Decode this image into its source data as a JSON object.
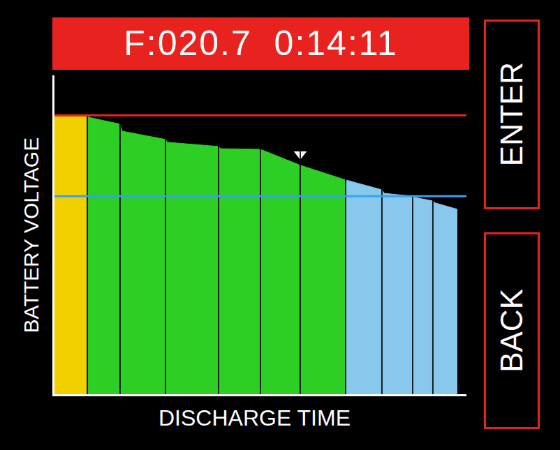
{
  "chart_data": {
    "type": "area",
    "title": "F:020.7  0:14:11",
    "xlabel": "DISCHARGE TIME",
    "ylabel": "BATTERY VOLTAGE",
    "xlim": [
      0,
      100
    ],
    "ylim": [
      0,
      100
    ],
    "xticks": [],
    "yticks": [],
    "tick_labels": false,
    "grid": false,
    "series": [
      {
        "color": "#f2d000",
        "x": [
          0,
          7.97
        ],
        "values": [
          87.1,
          87.1
        ]
      },
      {
        "color": "#2dcf24",
        "x": [
          7.97,
          8.81,
          15.93,
          16.44,
          26.95,
          27.46,
          39.83,
          40.34,
          50.0,
          59.66,
          70.68
        ],
        "values": [
          87.1,
          86.7,
          84.7,
          82.5,
          79.9,
          79.0,
          77.7,
          77.0,
          76.8,
          71.8,
          67.2
        ]
      },
      {
        "color": "#88c8ec",
        "x": [
          70.68,
          79.49,
          80.0,
          86.95,
          87.46,
          91.86,
          92.37,
          97.8
        ],
        "values": [
          67.2,
          64.1,
          63.0,
          62.1,
          61.7,
          60.6,
          60.0,
          58.0
        ]
      }
    ],
    "dividers": [
      7.97,
      15.93,
      26.95,
      39.83,
      50.0,
      59.66,
      70.68,
      79.49,
      86.95,
      91.86
    ],
    "reference_lines": [
      {
        "value": 87.5,
        "color": "#e8231f"
      },
      {
        "value": 62.1,
        "color": "#3a9ff0"
      }
    ],
    "pointer": {
      "x": 59.66,
      "y": 75.3,
      "color": "#ffffff",
      "marker": "triangle-down"
    }
  },
  "buttons": [
    "ENTER",
    "BACK"
  ]
}
